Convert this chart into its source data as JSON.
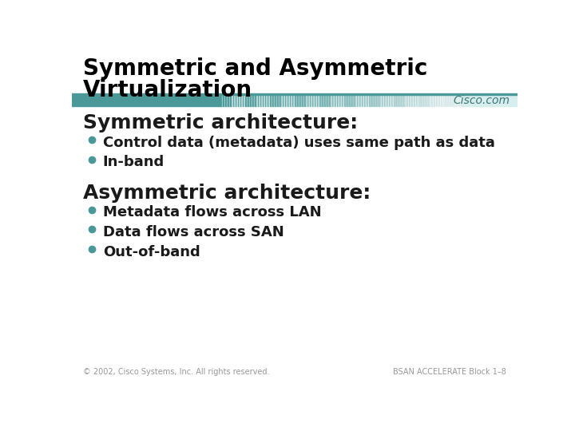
{
  "title_line1": "Symmetric and Asymmetric",
  "title_line2": "Virtualization",
  "cisco_text": "Cisco.com",
  "bg_color": "#ffffff",
  "title_color": "#000000",
  "header_bar_teal": "#4a9898",
  "sym_heading": "Symmetric architecture:",
  "sym_bullets": [
    "Control data (metadata) uses same path as data",
    "In-band"
  ],
  "asym_heading": "Asymmetric architecture:",
  "asym_bullets": [
    "Metadata flows across LAN",
    "Data flows across SAN",
    "Out-of-band"
  ],
  "bullet_color": "#4a9898",
  "heading_color": "#1a1a1a",
  "bullet_text_color": "#1a1a1a",
  "footer_left": "© 2002, Cisco Systems, Inc. All rights reserved.",
  "footer_right": "BSAN ACCELERATE Block 1–8",
  "footer_color": "#999999",
  "title_fontsize": 20,
  "heading_fontsize": 18,
  "bullet_fontsize": 13
}
